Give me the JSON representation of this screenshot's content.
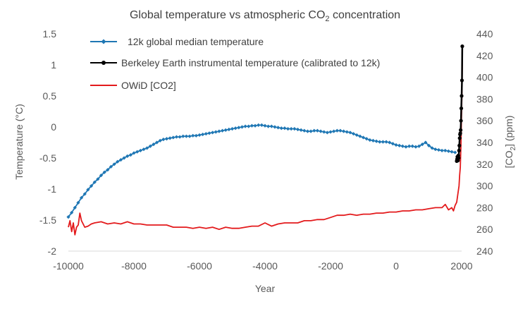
{
  "chart_data": {
    "type": "line",
    "title": "Global temperature vs atmospheric CO",
    "title_sub": "2",
    "title_suffix": " concentration",
    "xlabel": "Year",
    "ylabel_left": "Temperature (°C)",
    "ylabel_right_prefix": "[CO",
    "ylabel_right_sub": "2",
    "ylabel_right_suffix": "] (ppm)",
    "xlim": [
      -10000,
      2000
    ],
    "ylim_left": [
      -2,
      1.5
    ],
    "ylim_right": [
      240,
      440
    ],
    "x_ticks": [
      "-10000",
      "-8000",
      "-6000",
      "-4000",
      "-2000",
      "0",
      "2000"
    ],
    "y_left_ticks": [
      "1.5",
      "1",
      "0.5",
      "0",
      "-0.5",
      "-1",
      "-1.5",
      "-2"
    ],
    "y_right_ticks": [
      "440",
      "420",
      "400",
      "380",
      "360",
      "340",
      "320",
      "300",
      "280",
      "260",
      "240"
    ],
    "legend_position": "top-left",
    "grid": false,
    "series": [
      {
        "name": "12k global median temperature",
        "axis": "left",
        "color": "#1f77b4",
        "marker": "diamond",
        "x": [
          -10000,
          -9900,
          -9800,
          -9700,
          -9600,
          -9500,
          -9400,
          -9300,
          -9200,
          -9100,
          -9000,
          -8900,
          -8800,
          -8700,
          -8600,
          -8500,
          -8400,
          -8300,
          -8200,
          -8100,
          -8000,
          -7900,
          -7800,
          -7700,
          -7600,
          -7500,
          -7400,
          -7300,
          -7200,
          -7100,
          -7000,
          -6900,
          -6800,
          -6700,
          -6600,
          -6500,
          -6400,
          -6300,
          -6200,
          -6100,
          -6000,
          -5900,
          -5800,
          -5700,
          -5600,
          -5500,
          -5400,
          -5300,
          -5200,
          -5100,
          -5000,
          -4900,
          -4800,
          -4700,
          -4600,
          -4500,
          -4400,
          -4300,
          -4200,
          -4100,
          -4000,
          -3900,
          -3800,
          -3700,
          -3600,
          -3500,
          -3400,
          -3300,
          -3200,
          -3100,
          -3000,
          -2900,
          -2800,
          -2700,
          -2600,
          -2500,
          -2400,
          -2300,
          -2200,
          -2100,
          -2000,
          -1900,
          -1800,
          -1700,
          -1600,
          -1500,
          -1400,
          -1300,
          -1200,
          -1100,
          -1000,
          -900,
          -800,
          -700,
          -600,
          -500,
          -400,
          -300,
          -200,
          -100,
          0,
          100,
          200,
          300,
          400,
          500,
          600,
          700,
          800,
          900,
          1000,
          1100,
          1200,
          1300,
          1400,
          1500,
          1600,
          1700,
          1800
        ],
        "values": [
          -1.45,
          -1.38,
          -1.3,
          -1.22,
          -1.14,
          -1.08,
          -1.01,
          -0.95,
          -0.89,
          -0.84,
          -0.78,
          -0.73,
          -0.69,
          -0.64,
          -0.6,
          -0.56,
          -0.53,
          -0.5,
          -0.47,
          -0.45,
          -0.42,
          -0.4,
          -0.38,
          -0.36,
          -0.34,
          -0.31,
          -0.28,
          -0.25,
          -0.22,
          -0.2,
          -0.19,
          -0.18,
          -0.17,
          -0.16,
          -0.16,
          -0.15,
          -0.15,
          -0.15,
          -0.14,
          -0.14,
          -0.13,
          -0.12,
          -0.11,
          -0.1,
          -0.09,
          -0.08,
          -0.07,
          -0.06,
          -0.05,
          -0.04,
          -0.03,
          -0.02,
          -0.01,
          0,
          0.01,
          0.01,
          0.02,
          0.02,
          0.03,
          0.03,
          0.02,
          0.01,
          0.01,
          0,
          -0.01,
          -0.02,
          -0.02,
          -0.03,
          -0.03,
          -0.03,
          -0.04,
          -0.05,
          -0.06,
          -0.07,
          -0.07,
          -0.06,
          -0.06,
          -0.07,
          -0.08,
          -0.09,
          -0.08,
          -0.07,
          -0.06,
          -0.06,
          -0.07,
          -0.08,
          -0.09,
          -0.11,
          -0.13,
          -0.15,
          -0.17,
          -0.19,
          -0.21,
          -0.22,
          -0.23,
          -0.24,
          -0.24,
          -0.24,
          -0.25,
          -0.27,
          -0.29,
          -0.3,
          -0.31,
          -0.32,
          -0.31,
          -0.31,
          -0.32,
          -0.31,
          -0.28,
          -0.25,
          -0.3,
          -0.34,
          -0.36,
          -0.37,
          -0.38,
          -0.38,
          -0.39,
          -0.4,
          -0.41
        ]
      },
      {
        "name": "Berkeley Earth instrumental temperature (calibrated to 12k)",
        "axis": "left",
        "color": "#000000",
        "marker": "circle",
        "x": [
          1850,
          1860,
          1870,
          1880,
          1890,
          1900,
          1910,
          1920,
          1930,
          1940,
          1950,
          1960,
          1970,
          1980,
          1990,
          2000,
          2010,
          2020
        ],
        "values": [
          -0.55,
          -0.52,
          -0.48,
          -0.5,
          -0.54,
          -0.46,
          -0.5,
          -0.38,
          -0.3,
          -0.18,
          -0.12,
          -0.1,
          -0.05,
          0.1,
          0.3,
          0.5,
          0.75,
          1.3
        ]
      },
      {
        "name": "OWiD [CO2]",
        "axis": "right",
        "color": "#e31a1c",
        "marker": "none",
        "x": [
          -10000,
          -9950,
          -9900,
          -9850,
          -9800,
          -9750,
          -9700,
          -9650,
          -9600,
          -9500,
          -9400,
          -9300,
          -9200,
          -9000,
          -8800,
          -8600,
          -8400,
          -8200,
          -8000,
          -7800,
          -7600,
          -7400,
          -7200,
          -7000,
          -6800,
          -6600,
          -6400,
          -6200,
          -6000,
          -5800,
          -5600,
          -5400,
          -5200,
          -5000,
          -4800,
          -4600,
          -4400,
          -4200,
          -4000,
          -3800,
          -3600,
          -3400,
          -3200,
          -3000,
          -2800,
          -2600,
          -2400,
          -2200,
          -2000,
          -1800,
          -1600,
          -1400,
          -1200,
          -1000,
          -800,
          -600,
          -400,
          -200,
          0,
          200,
          400,
          600,
          800,
          1000,
          1200,
          1400,
          1500,
          1600,
          1700,
          1750,
          1800,
          1850,
          1900,
          1920,
          1940,
          1960,
          1980,
          2000,
          2010,
          2020
        ],
        "values": [
          262,
          268,
          258,
          266,
          255,
          262,
          264,
          275,
          268,
          262,
          263,
          265,
          266,
          267,
          265,
          266,
          265,
          267,
          265,
          265,
          264,
          264,
          264,
          264,
          262,
          262,
          262,
          261,
          262,
          261,
          262,
          260,
          262,
          261,
          261,
          262,
          263,
          263,
          266,
          263,
          265,
          266,
          266,
          266,
          268,
          268,
          269,
          269,
          271,
          273,
          273,
          274,
          273,
          274,
          274,
          275,
          275,
          276,
          276,
          277,
          277,
          278,
          278,
          279,
          280,
          280,
          283,
          278,
          280,
          277,
          282,
          285,
          296,
          300,
          310,
          317,
          339,
          370,
          390,
          415
        ]
      }
    ]
  }
}
